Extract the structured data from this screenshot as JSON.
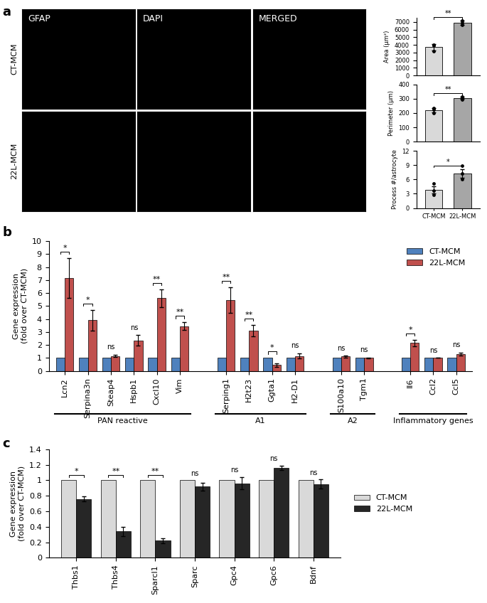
{
  "panel_labels": [
    "a",
    "b",
    "c"
  ],
  "image_grid": {
    "columns": [
      "GFAP",
      "DAPI",
      "MERGED"
    ],
    "rows": [
      "CT-MCM",
      "22L-MCM"
    ]
  },
  "chart_data": [
    {
      "type": "bar",
      "y_label": "Area (µm²)",
      "categories": [
        null,
        null
      ],
      "values": [
        3700,
        6900
      ],
      "errors": [
        400,
        250
      ],
      "points": [
        [
          3200,
          3900,
          4000
        ],
        [
          6650,
          6900,
          7150
        ]
      ],
      "colors": [
        "#d9d9d9",
        "#a6a6a6"
      ],
      "significance": "**",
      "ylim": [
        0,
        7500
      ],
      "yticks": [
        0,
        1000,
        2000,
        3000,
        4000,
        5000,
        6000,
        7000
      ]
    },
    {
      "type": "bar",
      "y_label": "Perimeter (µm)",
      "categories": [
        null,
        null
      ],
      "values": [
        220,
        305
      ],
      "errors": [
        15,
        8
      ],
      "points": [
        [
          200,
          225,
          235
        ],
        [
          295,
          305,
          315
        ]
      ],
      "colors": [
        "#d9d9d9",
        "#a6a6a6"
      ],
      "significance": "**",
      "ylim": [
        0,
        400
      ],
      "yticks": [
        0,
        100,
        200,
        300,
        400
      ]
    },
    {
      "type": "bar",
      "y_label": "Process #/astrocyte",
      "categories": [
        "CT-MCM",
        "22L-MCM"
      ],
      "values": [
        3.8,
        7.3
      ],
      "errors": [
        0.8,
        0.9
      ],
      "points": [
        [
          2.7,
          3.6,
          5.1
        ],
        [
          6.0,
          7.2,
          8.8
        ]
      ],
      "colors": [
        "#d9d9d9",
        "#a6a6a6"
      ],
      "significance": "*",
      "ylim": [
        0,
        12
      ],
      "yticks": [
        0,
        3,
        6,
        9,
        12
      ]
    },
    {
      "type": "grouped_bar",
      "y_label": "Gene expression\n(fold over CT-MCM)",
      "groups": [
        {
          "label": "PAN reactive",
          "categories": [
            "Lcn2",
            "Serpina3n",
            "Steap4",
            "Hspb1",
            "Cxcl10",
            "Vim"
          ]
        },
        {
          "label": "A1",
          "categories": [
            "Serping1",
            "H2t23",
            "Ggta1",
            "H2-D1"
          ]
        },
        {
          "label": "A2",
          "categories": [
            "S100a10",
            "Tgm1"
          ]
        },
        {
          "label": "Inflammatory genes",
          "categories": [
            "Il6",
            "Ccl2",
            "Ccl5"
          ]
        }
      ],
      "series": [
        {
          "name": "CT-MCM",
          "color": "#4f81bd",
          "values": [
            1,
            1,
            1,
            1,
            1,
            1,
            1,
            1,
            1,
            1,
            1,
            1,
            1,
            1,
            1
          ]
        },
        {
          "name": "22L-MCM",
          "color": "#c0504d",
          "values": [
            7.15,
            3.9,
            1.15,
            2.35,
            5.6,
            3.45,
            5.45,
            3.1,
            0.45,
            1.15,
            1.1,
            1.0,
            2.15,
            1.0,
            1.3
          ],
          "errors": [
            1.55,
            0.8,
            0.1,
            0.4,
            0.7,
            0.3,
            1.0,
            0.45,
            0.15,
            0.2,
            0.08,
            0.02,
            0.25,
            0.01,
            0.12
          ]
        }
      ],
      "significance": [
        "*",
        "*",
        "ns",
        "ns",
        "**",
        "**",
        "**",
        "**",
        "*",
        "ns",
        "ns",
        "ns",
        "*",
        "ns",
        "ns"
      ],
      "ylim": [
        0,
        10
      ],
      "yticks": [
        0,
        1,
        2,
        3,
        4,
        5,
        6,
        7,
        8,
        9,
        10
      ],
      "legend": "upper right"
    },
    {
      "type": "grouped_bar",
      "y_label": "Gene expression\n(fold over CT-MCM)",
      "categories": [
        "Thbs1",
        "Thbs4",
        "Sparcl1",
        "Sparc",
        "Gpc4",
        "Gpc6",
        "Bdnf"
      ],
      "series": [
        {
          "name": "CT-MCM",
          "color": "#d9d9d9",
          "values": [
            1,
            1,
            1,
            1,
            1,
            1,
            1
          ]
        },
        {
          "name": "22L-MCM",
          "color": "#262626",
          "values": [
            0.76,
            0.34,
            0.22,
            0.92,
            0.96,
            1.16,
            0.95
          ],
          "errors": [
            0.03,
            0.06,
            0.03,
            0.05,
            0.08,
            0.03,
            0.06
          ]
        }
      ],
      "significance": [
        "*",
        "**",
        "**",
        "ns",
        "ns",
        "ns",
        "ns"
      ],
      "ylim": [
        0,
        1.4
      ],
      "yticks": [
        0,
        0.2,
        0.4,
        0.6,
        0.8,
        1,
        1.2,
        1.4
      ],
      "legend": "right"
    }
  ]
}
